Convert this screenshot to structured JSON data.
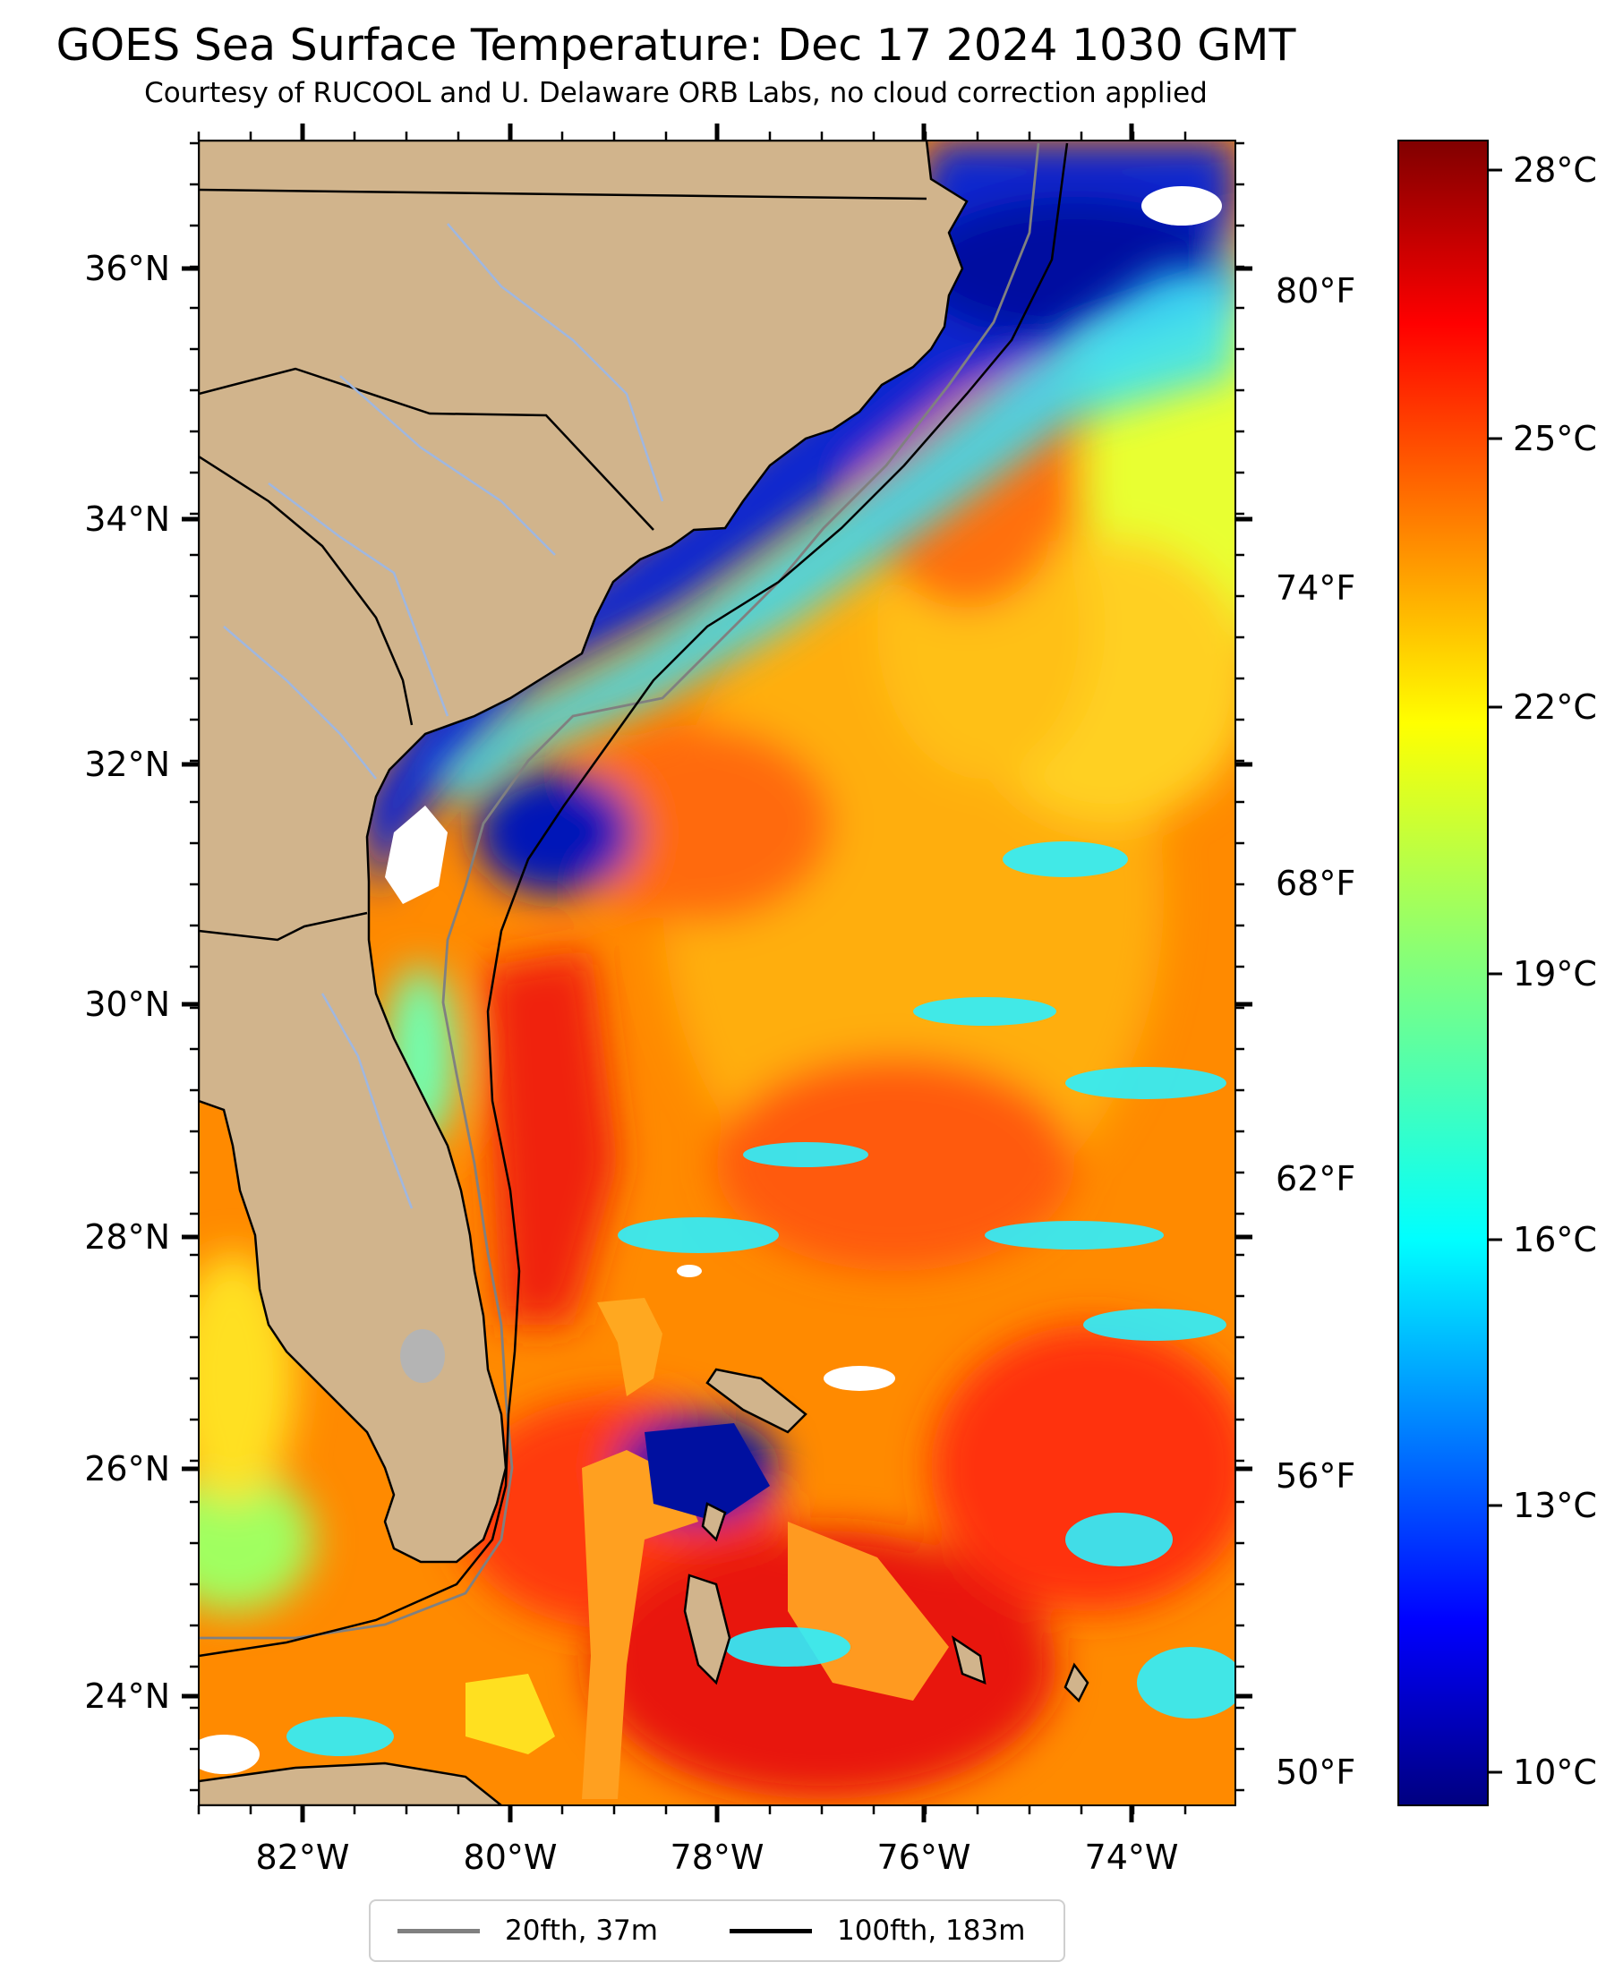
{
  "map": {
    "title": "GOES Sea Surface Temperature: Dec 17 2024 1030 GMT",
    "subtitle": "Courtesy of RUCOOL and U. Delaware ORB Labs, no cloud correction applied",
    "lon_ticks": [
      "82°W",
      "80°W",
      "78°W",
      "76°W",
      "74°W"
    ],
    "lat_ticks": [
      "36°N",
      "34°N",
      "32°N",
      "30°N",
      "28°N",
      "26°N",
      "24°N"
    ],
    "fahrenheit_ticks": [
      "80°F",
      "74°F",
      "68°F",
      "62°F",
      "56°F",
      "50°F"
    ],
    "extent": {
      "lon_min": -83.0,
      "lon_max": -73.0,
      "lat_min": 23.1,
      "lat_max": 37.1
    },
    "land_color": "#d1b48c",
    "cloud_color": "#ffffff",
    "lake_color": "#b4b4b4",
    "river_color": "#9fb7e0"
  },
  "colorbar": {
    "min_c": 9.4,
    "max_c": 28.5,
    "ticks": [
      "28°C",
      "25°C",
      "22°C",
      "19°C",
      "16°C",
      "13°C",
      "10°C"
    ],
    "colormap": "jet"
  },
  "legend": {
    "items": [
      {
        "label": "20fth, 37m",
        "color": "#808080"
      },
      {
        "label": "100fth, 183m",
        "color": "#000000"
      }
    ]
  }
}
